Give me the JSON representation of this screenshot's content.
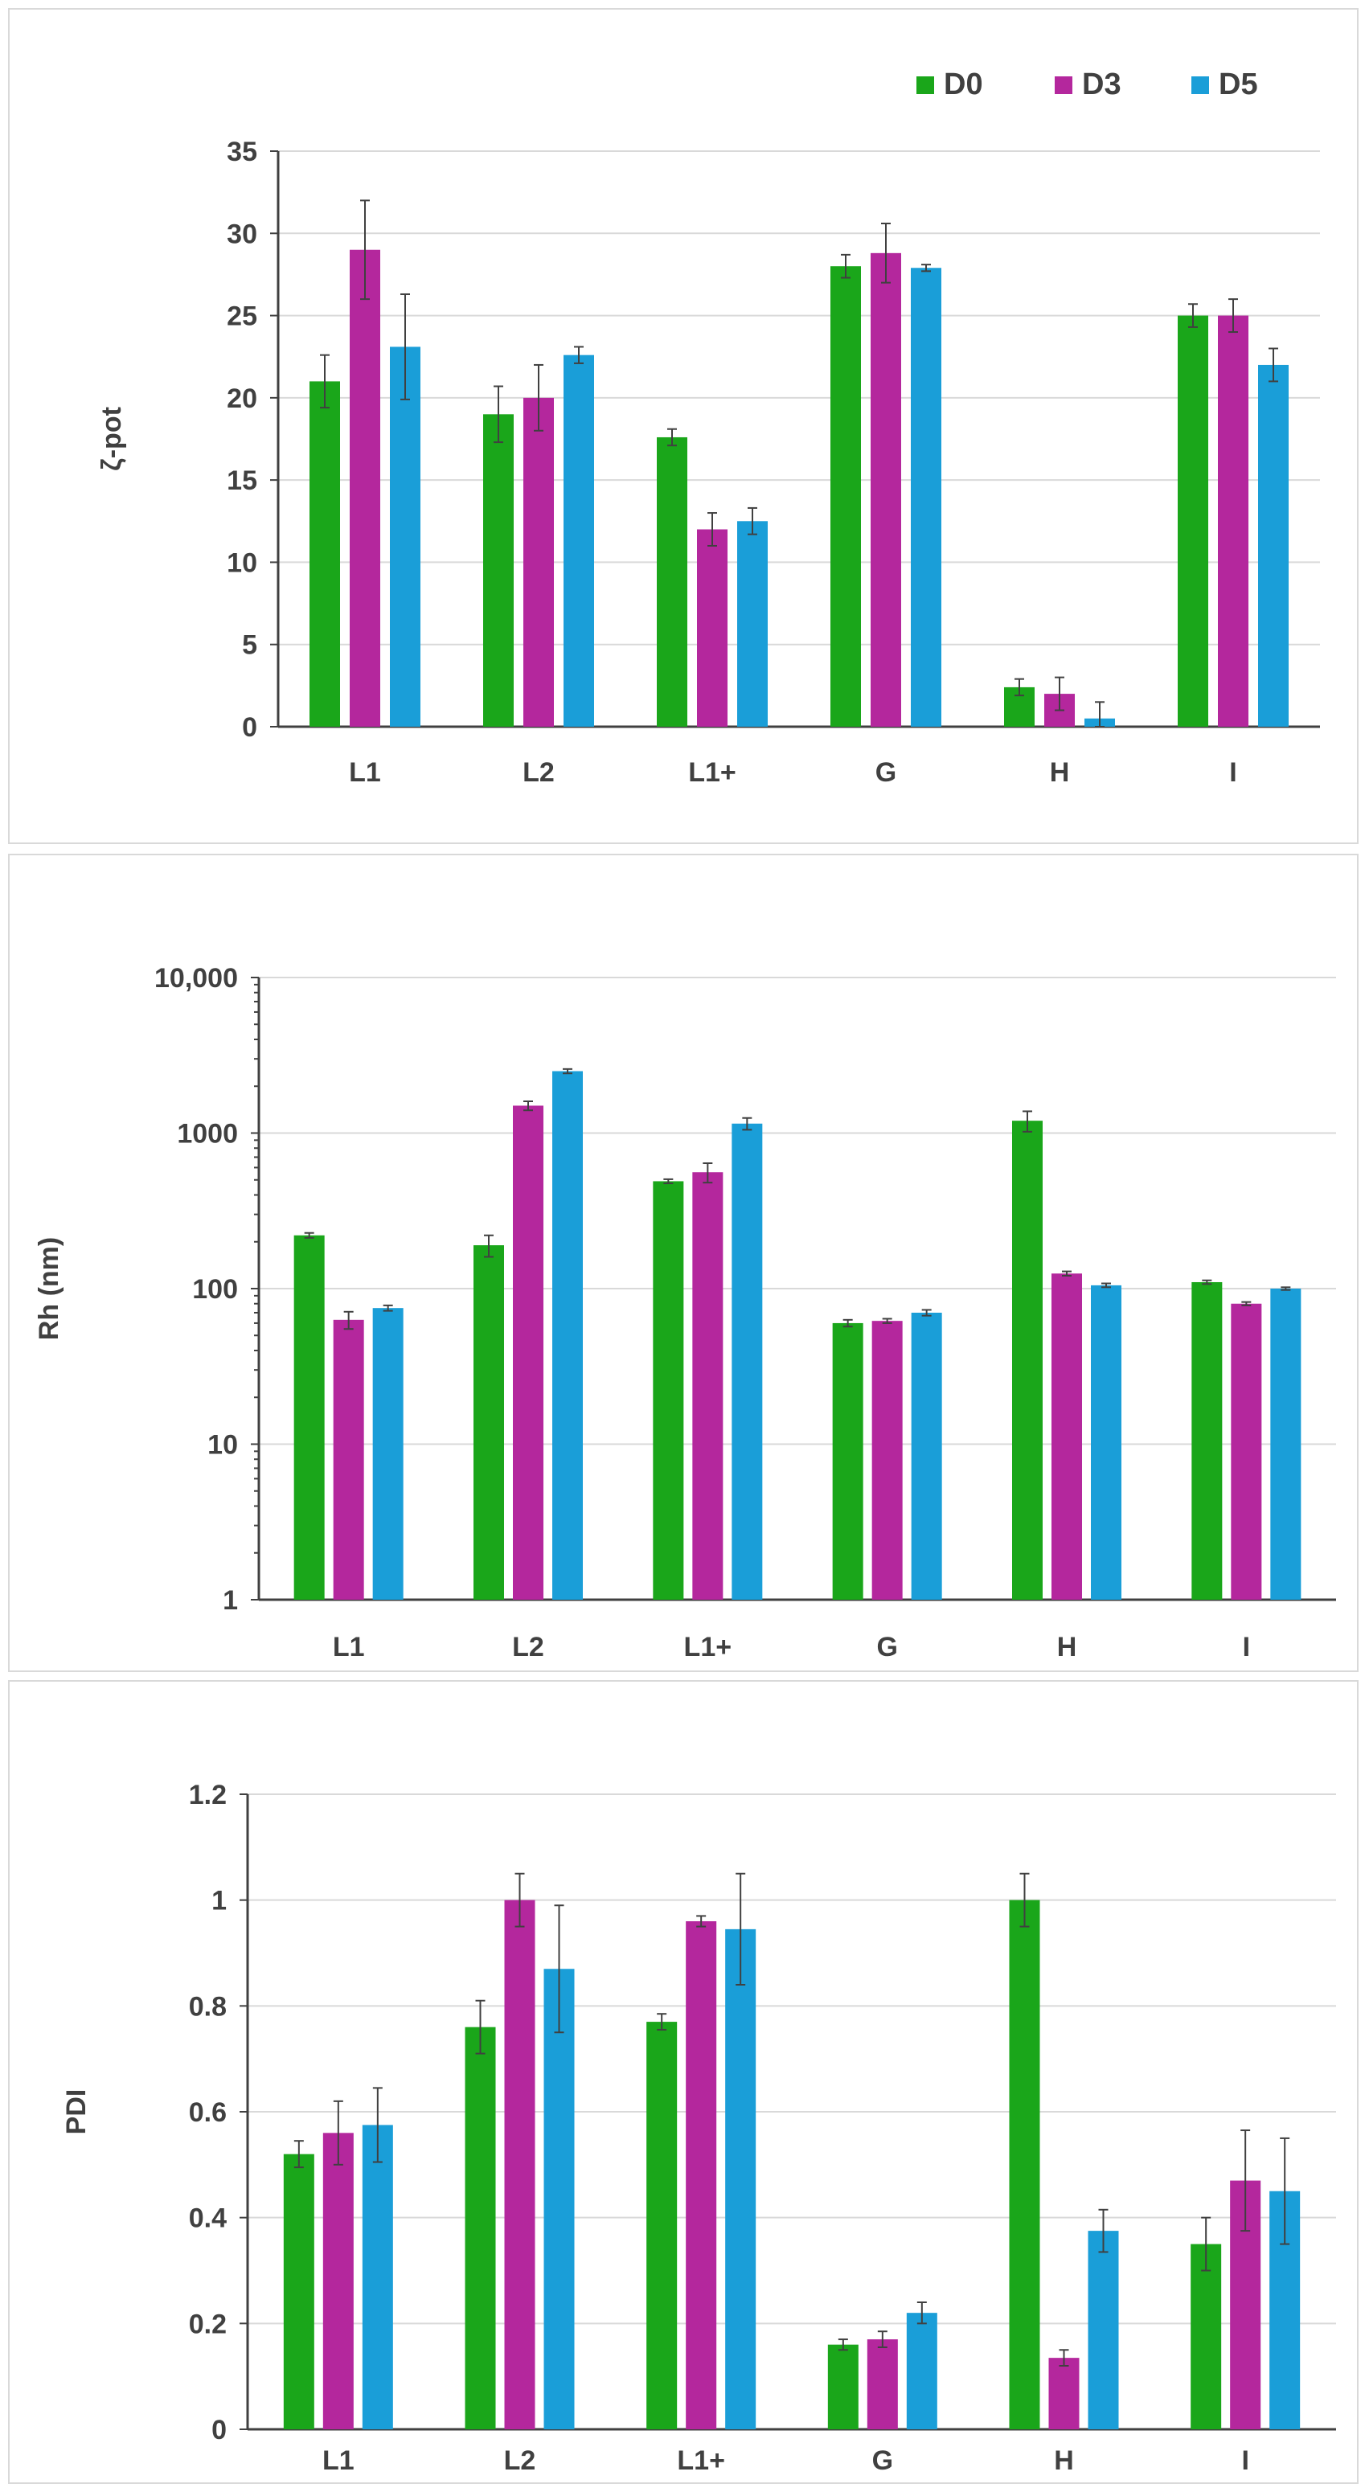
{
  "legend": [
    {
      "name": "D0",
      "color": "#1aa61a"
    },
    {
      "name": "D3",
      "color": "#b4279d"
    },
    {
      "name": "D5",
      "color": "#1a9ed8"
    }
  ],
  "chart_data": [
    {
      "id": "zeta",
      "type": "bar",
      "ylabel": "ζ-pot",
      "scale": "linear",
      "ylim": [
        0,
        35
      ],
      "yticks": [
        0,
        5,
        10,
        15,
        20,
        25,
        30,
        35
      ],
      "ytick_labels": [
        "0",
        "5",
        "10",
        "15",
        "20",
        "25",
        "30",
        "35"
      ],
      "grid": true,
      "categories": [
        "L1",
        "L2",
        "L1+",
        "G",
        "H",
        "I"
      ],
      "series": [
        {
          "name": "D0",
          "values": [
            21,
            19,
            17.6,
            28,
            2.4,
            25
          ],
          "errors": [
            1.6,
            1.7,
            0.5,
            0.7,
            0.5,
            0.7
          ]
        },
        {
          "name": "D3",
          "values": [
            29,
            20,
            12,
            28.8,
            2,
            25
          ],
          "errors": [
            3.0,
            2.0,
            1.0,
            1.8,
            1.0,
            1.0
          ]
        },
        {
          "name": "D5",
          "values": [
            23.1,
            22.6,
            12.5,
            27.9,
            0.5,
            22
          ],
          "errors": [
            3.2,
            0.5,
            0.8,
            0.2,
            1.0,
            1.0
          ]
        }
      ]
    },
    {
      "id": "rh",
      "type": "bar",
      "ylabel": "Rh (nm)",
      "scale": "log",
      "ylim": [
        1,
        10000
      ],
      "yticks": [
        1,
        10,
        100,
        1000,
        10000
      ],
      "ytick_labels": [
        "1",
        "10",
        "100",
        "1000",
        "10,000"
      ],
      "grid": true,
      "categories": [
        "L1",
        "L2",
        "L1+",
        "G",
        "H",
        "I"
      ],
      "series": [
        {
          "name": "D0",
          "values": [
            220,
            190,
            490,
            60,
            1200,
            110
          ],
          "errors": [
            8,
            30,
            15,
            3,
            180,
            3
          ]
        },
        {
          "name": "D3",
          "values": [
            63,
            1500,
            560,
            62,
            125,
            80
          ],
          "errors": [
            8,
            100,
            80,
            2,
            4,
            2
          ]
        },
        {
          "name": "D5",
          "values": [
            75,
            2500,
            1150,
            70,
            105,
            100
          ],
          "errors": [
            3,
            80,
            100,
            3,
            3,
            2
          ]
        }
      ]
    },
    {
      "id": "pdi",
      "type": "bar",
      "ylabel": "PDI",
      "scale": "linear",
      "ylim": [
        0,
        1.2
      ],
      "yticks": [
        0,
        0.2,
        0.4,
        0.6,
        0.8,
        1,
        1.2
      ],
      "ytick_labels": [
        "0",
        "0.2",
        "0.4",
        "0.6",
        "0.8",
        "1",
        "1.2"
      ],
      "grid": true,
      "categories": [
        "L1",
        "L2",
        "L1+",
        "G",
        "H",
        "I"
      ],
      "series": [
        {
          "name": "D0",
          "values": [
            0.52,
            0.76,
            0.77,
            0.16,
            1.0,
            0.35
          ],
          "errors": [
            0.025,
            0.05,
            0.015,
            0.01,
            0.05,
            0.05
          ]
        },
        {
          "name": "D3",
          "values": [
            0.56,
            1.0,
            0.96,
            0.17,
            0.135,
            0.47
          ],
          "errors": [
            0.06,
            0.05,
            0.01,
            0.015,
            0.015,
            0.095
          ]
        },
        {
          "name": "D5",
          "values": [
            0.575,
            0.87,
            0.945,
            0.22,
            0.375,
            0.45
          ],
          "errors": [
            0.07,
            0.12,
            0.105,
            0.02,
            0.04,
            0.1
          ]
        }
      ]
    }
  ]
}
